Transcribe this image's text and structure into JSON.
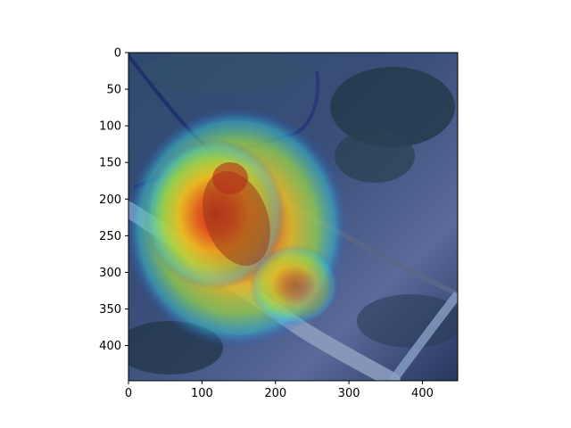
{
  "chart_data": {
    "type": "heatmap",
    "title": "",
    "xlabel": "",
    "ylabel": "",
    "x_ticks": [
      0,
      100,
      200,
      300,
      400
    ],
    "y_ticks": [
      0,
      50,
      100,
      150,
      200,
      250,
      300,
      350,
      400
    ],
    "xlim": [
      0,
      448
    ],
    "ylim": [
      448,
      0
    ],
    "y_axis_inverted": true,
    "grid": false,
    "colormap": "jet",
    "overlay": "saliency heatmap over photo of a bird on branches",
    "hotspots": [
      {
        "x": 125,
        "y": 230,
        "intensity": 1.0
      },
      {
        "x": 155,
        "y": 200,
        "intensity": 0.95
      },
      {
        "x": 95,
        "y": 255,
        "intensity": 0.9
      },
      {
        "x": 210,
        "y": 300,
        "intensity": 0.75
      },
      {
        "x": 60,
        "y": 210,
        "intensity": 0.6
      }
    ]
  }
}
